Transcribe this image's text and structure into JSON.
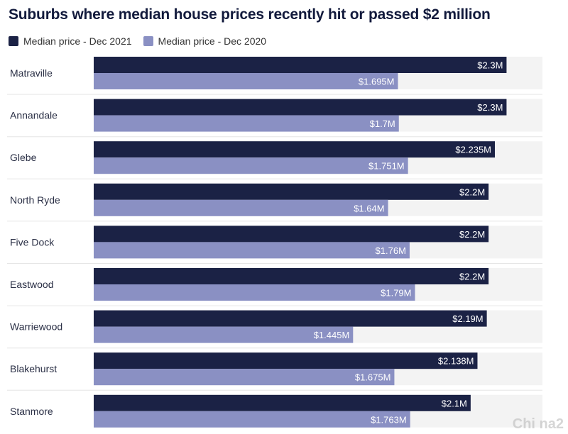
{
  "chart_data": {
    "type": "bar",
    "orientation": "horizontal",
    "title": "Suburbs where median house prices recently hit or passed $2 million",
    "categories": [
      "Matraville",
      "Annandale",
      "Glebe",
      "North Ryde",
      "Five Dock",
      "Eastwood",
      "Warriewood",
      "Blakehurst",
      "Stanmore"
    ],
    "series": [
      {
        "name": "Median price - Dec 2021",
        "color": "#1b2245",
        "values": [
          2.3,
          2.3,
          2.235,
          2.2,
          2.2,
          2.2,
          2.19,
          2.138,
          2.1
        ],
        "labels": [
          "$2.3M",
          "$2.3M",
          "$2.235M",
          "$2.2M",
          "$2.2M",
          "$2.2M",
          "$2.19M",
          "$2.138M",
          "$2.1M"
        ]
      },
      {
        "name": "Median price - Dec 2020",
        "color": "#8a90c3",
        "values": [
          1.695,
          1.7,
          1.751,
          1.64,
          1.76,
          1.79,
          1.445,
          1.675,
          1.763
        ],
        "labels": [
          "$1.695M",
          "$1.7M",
          "$1.751M",
          "$1.64M",
          "$1.76M",
          "$1.79M",
          "$1.445M",
          "$1.675M",
          "$1.763M"
        ]
      }
    ],
    "xlim": [
      0,
      2.5
    ],
    "grid": false,
    "legend_position": "top-left"
  },
  "watermark": "Chi na2"
}
